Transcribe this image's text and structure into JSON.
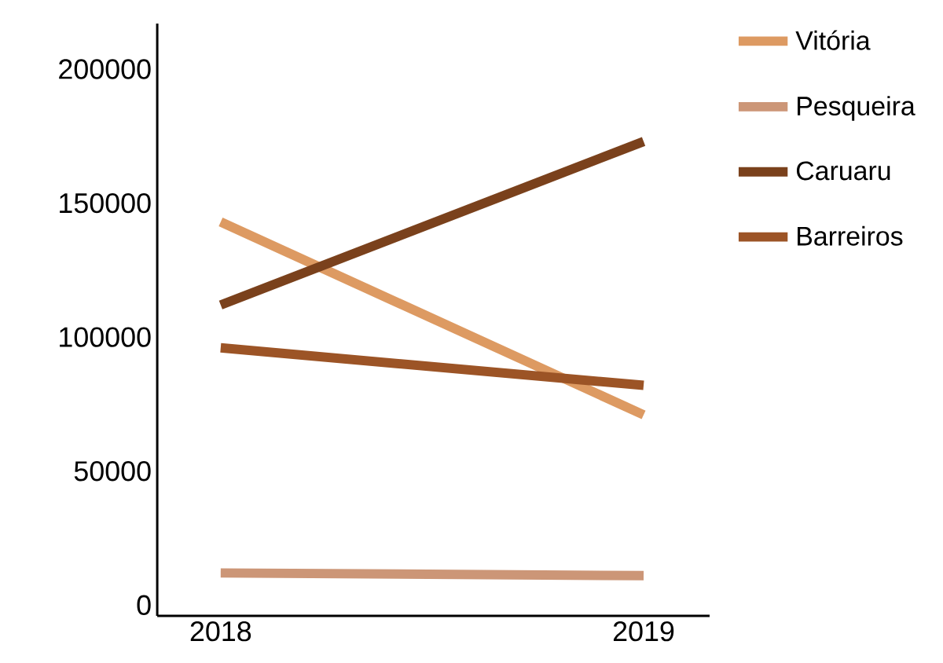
{
  "chart_data": {
    "type": "line",
    "categories": [
      "2018",
      "2019"
    ],
    "series": [
      {
        "name": "Vitória",
        "color": "#dd9a62",
        "values": [
          143000,
          71000
        ]
      },
      {
        "name": "Pesqueira",
        "color": "#cc9677",
        "values": [
          12000,
          11000
        ]
      },
      {
        "name": "Caruaru",
        "color": "#7a411c",
        "values": [
          112000,
          173000
        ]
      },
      {
        "name": "Barreiros",
        "color": "#9c5426",
        "values": [
          96000,
          82000
        ]
      }
    ],
    "ylim": [
      -4000,
      217000
    ],
    "yticks": [
      0,
      50000,
      100000,
      150000,
      200000
    ],
    "grid": false,
    "legend": "right",
    "marker": "none",
    "line_style": "solid"
  }
}
